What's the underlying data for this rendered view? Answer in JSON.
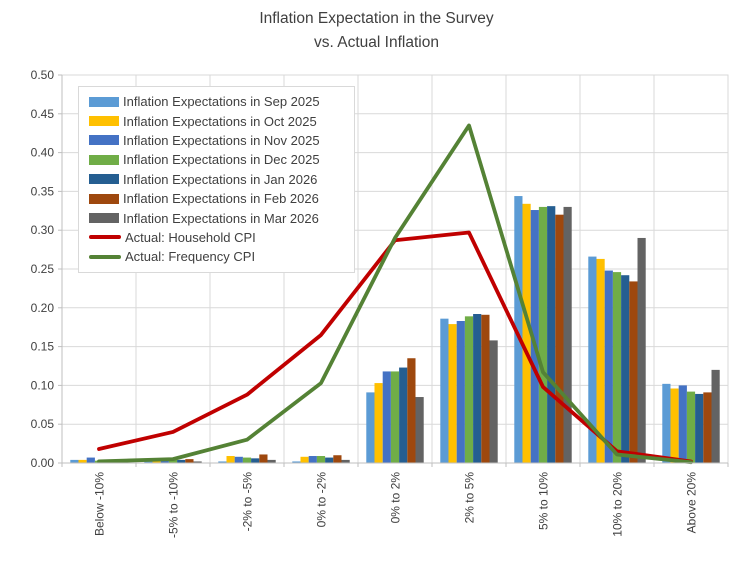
{
  "title": {
    "line1": "Inflation Expectation in the Survey",
    "line2": "vs. Actual Inflation"
  },
  "chart_data": {
    "type": "bar",
    "combo": "clustered bars with line overlays",
    "categories": [
      "Below -10%",
      "-5% to -10%",
      "-2% to -5%",
      "0% to -2%",
      "0% to 2%",
      "2% to 5%",
      "5% to 10%",
      "10% to 20%",
      "Above 20%"
    ],
    "bar_series": [
      {
        "name": "Inflation Expectations in Sep 2025",
        "color": "#5B9BD5",
        "values": [
          0.004,
          0.002,
          0.002,
          0.002,
          0.091,
          0.186,
          0.344,
          0.266,
          0.102
        ]
      },
      {
        "name": "Inflation Expectations in Oct 2025",
        "color": "#FFC000",
        "values": [
          0.004,
          0.004,
          0.009,
          0.008,
          0.103,
          0.179,
          0.334,
          0.263,
          0.096
        ]
      },
      {
        "name": "Inflation Expectations in Nov 2025",
        "color": "#4472C4",
        "values": [
          0.007,
          0.005,
          0.008,
          0.009,
          0.118,
          0.183,
          0.326,
          0.248,
          0.1
        ]
      },
      {
        "name": "Inflation Expectations in Dec 2025",
        "color": "#70AD47",
        "values": [
          0.003,
          0.004,
          0.007,
          0.009,
          0.118,
          0.189,
          0.33,
          0.246,
          0.092
        ]
      },
      {
        "name": "Inflation Expectations in Jan 2026",
        "color": "#255E91",
        "values": [
          0.002,
          0.004,
          0.006,
          0.007,
          0.123,
          0.192,
          0.331,
          0.242,
          0.089
        ]
      },
      {
        "name": "Inflation Expectations in Feb 2026",
        "color": "#9E480E",
        "values": [
          0.002,
          0.005,
          0.011,
          0.01,
          0.135,
          0.191,
          0.32,
          0.234,
          0.091
        ]
      },
      {
        "name": "Inflation Expectations in Mar 2026",
        "color": "#636363",
        "values": [
          0.002,
          0.002,
          0.004,
          0.004,
          0.085,
          0.158,
          0.33,
          0.29,
          0.12
        ]
      }
    ],
    "line_series": [
      {
        "name": "Actual: Household CPI",
        "color": "#C00000",
        "values": [
          0.018,
          0.04,
          0.088,
          0.165,
          0.287,
          0.297,
          0.098,
          0.015,
          0.002
        ]
      },
      {
        "name": "Actual: Frequency CPI",
        "color": "#548235",
        "values": [
          0.002,
          0.005,
          0.03,
          0.103,
          0.29,
          0.435,
          0.117,
          0.011,
          0.001
        ]
      }
    ],
    "ylim": [
      0,
      0.5
    ],
    "ytick_step": 0.05,
    "ytick_labels": [
      "0.00",
      "0.05",
      "0.10",
      "0.15",
      "0.20",
      "0.25",
      "0.30",
      "0.35",
      "0.40",
      "0.45",
      "0.50"
    ],
    "grid": "horizontal and vertical light gray gridlines",
    "legend_position": "top-left inside plot area",
    "colors": {
      "grid": "#D9D9D9",
      "axis": "#BFBFBF",
      "text": "#404040",
      "background": "#FFFFFF"
    }
  }
}
